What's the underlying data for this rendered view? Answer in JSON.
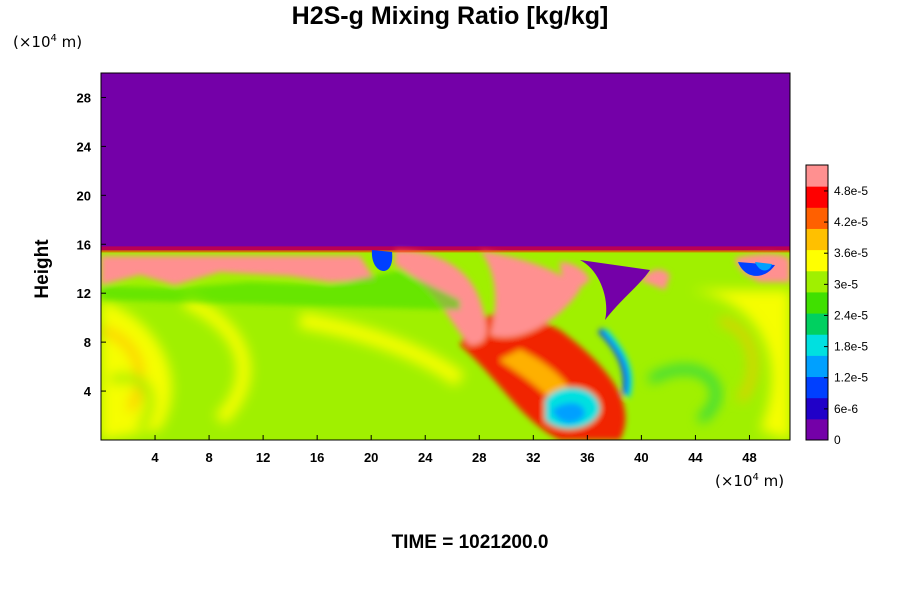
{
  "chart_data": {
    "type": "heatmap",
    "title": "H2S-g Mixing Ratio [kg/kg]",
    "ylabel": "Height",
    "x_unit": "(×10⁴ m)",
    "y_unit": "(×10⁴ m)",
    "x_unit_prefix": "(×10",
    "x_unit_exp": "4",
    "x_unit_suffix": " m)",
    "y_unit_prefix": "(×10",
    "y_unit_exp": "4",
    "y_unit_suffix": " m)",
    "xlim": [
      0,
      51
    ],
    "ylim": [
      0,
      30
    ],
    "xticks": [
      4,
      8,
      12,
      16,
      20,
      24,
      28,
      32,
      36,
      40,
      44,
      48
    ],
    "yticks": [
      4,
      8,
      12,
      16,
      20,
      24,
      28
    ],
    "colorbar": {
      "ticks": [
        {
          "value": 0,
          "label": "0"
        },
        {
          "value": 6e-06,
          "label": "6e-6"
        },
        {
          "value": 1.2e-05,
          "label": "1.2e-5"
        },
        {
          "value": 1.8e-05,
          "label": "1.8e-5"
        },
        {
          "value": 2.4e-05,
          "label": "2.4e-5"
        },
        {
          "value": 3e-05,
          "label": "3e-5"
        },
        {
          "value": 3.6e-05,
          "label": "3.6e-5"
        },
        {
          "value": 4.2e-05,
          "label": "4.2e-5"
        },
        {
          "value": 4.8e-05,
          "label": "4.8e-5"
        }
      ],
      "max": 5.3e-05,
      "colors": [
        "#7400a8",
        "#2000c8",
        "#0040ff",
        "#00a0ff",
        "#00e0e0",
        "#00d060",
        "#40e000",
        "#a0f000",
        "#ffff00",
        "#ffc000",
        "#ff6000",
        "#ff0000",
        "#ff9090"
      ]
    },
    "layer_top_height": 15.5,
    "lower_background_value": 3.2e-05,
    "upper_value": 0
  },
  "footer": {
    "time_label": "TIME = 1021200.0"
  }
}
